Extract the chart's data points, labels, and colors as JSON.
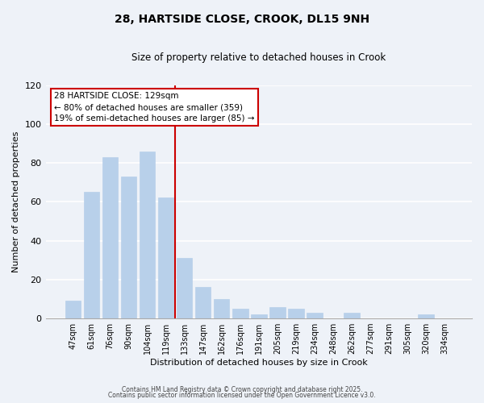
{
  "title": "28, HARTSIDE CLOSE, CROOK, DL15 9NH",
  "subtitle": "Size of property relative to detached houses in Crook",
  "xlabel": "Distribution of detached houses by size in Crook",
  "ylabel": "Number of detached properties",
  "bar_labels": [
    "47sqm",
    "61sqm",
    "76sqm",
    "90sqm",
    "104sqm",
    "119sqm",
    "133sqm",
    "147sqm",
    "162sqm",
    "176sqm",
    "191sqm",
    "205sqm",
    "219sqm",
    "234sqm",
    "248sqm",
    "262sqm",
    "277sqm",
    "291sqm",
    "305sqm",
    "320sqm",
    "334sqm"
  ],
  "bar_values": [
    9,
    65,
    83,
    73,
    86,
    62,
    31,
    16,
    10,
    5,
    2,
    6,
    5,
    3,
    0,
    3,
    0,
    0,
    0,
    2,
    0
  ],
  "bar_color": "#b8d0ea",
  "bar_edge_color": "#b8d0ea",
  "vline_x": 5.5,
  "vline_color": "#cc0000",
  "ylim": [
    0,
    120
  ],
  "yticks": [
    0,
    20,
    40,
    60,
    80,
    100,
    120
  ],
  "annotation_title": "28 HARTSIDE CLOSE: 129sqm",
  "annotation_line1": "← 80% of detached houses are smaller (359)",
  "annotation_line2": "19% of semi-detached houses are larger (85) →",
  "annotation_box_color": "#ffffff",
  "annotation_box_edge": "#cc0000",
  "background_color": "#eef2f8",
  "grid_color": "#ffffff",
  "footer1": "Contains HM Land Registry data © Crown copyright and database right 2025.",
  "footer2": "Contains public sector information licensed under the Open Government Licence v3.0."
}
